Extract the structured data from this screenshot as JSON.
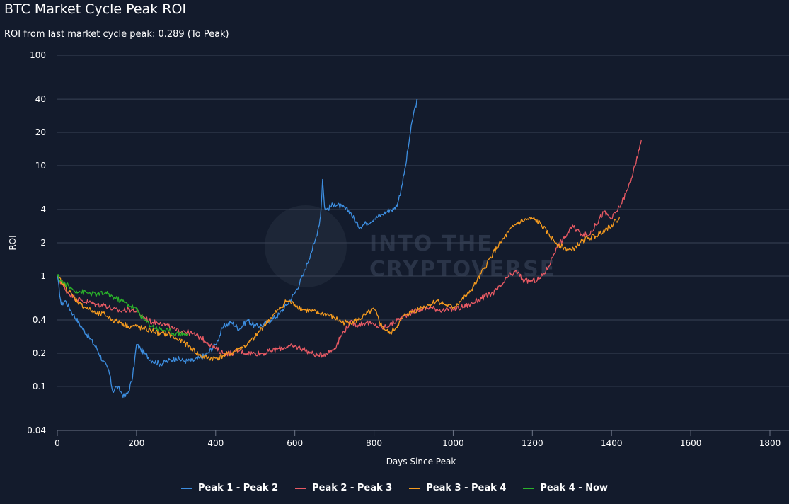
{
  "chart": {
    "title": "BTC Market Cycle Peak ROI",
    "subtitle": "ROI from last market cycle peak: 0.289 (To Peak)",
    "watermark": [
      "INTO THE",
      "CRYPTOVERSE"
    ],
    "background": "#131b2c",
    "grid_color": "#3a4356"
  },
  "chart_data": {
    "type": "line",
    "xlabel": "Days Since Peak",
    "ylabel": "ROI",
    "xlim": [
      0,
      1800
    ],
    "ylim": [
      0.04,
      100
    ],
    "y_scale": "log",
    "x_ticks": [
      0,
      200,
      400,
      600,
      800,
      1000,
      1200,
      1400,
      1600,
      1800
    ],
    "y_ticks": [
      0.04,
      0.1,
      0.2,
      0.4,
      1,
      2,
      4,
      10,
      20,
      40,
      100
    ],
    "y_tick_labels": [
      "0.04",
      "0.1",
      "0.2",
      "0.4",
      "1",
      "2",
      "4",
      "10",
      "20",
      "40",
      "100"
    ],
    "grid": true,
    "legend_position": "bottom-center",
    "series": [
      {
        "name": "Peak 1 - Peak 2",
        "color": "#3d8ee0",
        "x": [
          0,
          10,
          20,
          40,
          60,
          80,
          100,
          115,
          130,
          140,
          150,
          160,
          170,
          180,
          190,
          200,
          210,
          220,
          240,
          260,
          280,
          300,
          320,
          340,
          360,
          380,
          400,
          420,
          440,
          460,
          480,
          500,
          520,
          540,
          560,
          580,
          600,
          620,
          640,
          650,
          660,
          665,
          670,
          675,
          680,
          700,
          720,
          740,
          760,
          780,
          800,
          820,
          840,
          850,
          860,
          870,
          880,
          890,
          900,
          910
        ],
        "y": [
          1.0,
          0.55,
          0.6,
          0.45,
          0.35,
          0.28,
          0.22,
          0.17,
          0.14,
          0.09,
          0.1,
          0.09,
          0.08,
          0.09,
          0.12,
          0.24,
          0.22,
          0.2,
          0.17,
          0.16,
          0.17,
          0.18,
          0.17,
          0.17,
          0.18,
          0.2,
          0.24,
          0.35,
          0.38,
          0.33,
          0.4,
          0.35,
          0.36,
          0.4,
          0.45,
          0.55,
          0.7,
          1.0,
          1.6,
          2.0,
          2.8,
          3.5,
          7.5,
          4.2,
          4.0,
          4.5,
          4.2,
          3.8,
          2.8,
          3.0,
          3.3,
          3.6,
          4.0,
          4.0,
          4.6,
          6.5,
          10.0,
          18.0,
          30.0,
          40.0
        ]
      },
      {
        "name": "Peak 2 - Peak 3",
        "color": "#e85a64",
        "x": [
          0,
          20,
          40,
          60,
          80,
          100,
          120,
          140,
          160,
          180,
          200,
          220,
          240,
          260,
          280,
          300,
          320,
          340,
          360,
          380,
          400,
          420,
          440,
          460,
          480,
          500,
          520,
          540,
          560,
          580,
          600,
          620,
          640,
          660,
          680,
          700,
          720,
          740,
          760,
          780,
          800,
          820,
          840,
          860,
          880,
          900,
          920,
          940,
          960,
          980,
          1000,
          1020,
          1040,
          1060,
          1080,
          1100,
          1120,
          1140,
          1160,
          1180,
          1200,
          1220,
          1240,
          1260,
          1280,
          1300,
          1320,
          1340,
          1360,
          1380,
          1400,
          1420,
          1440,
          1460,
          1470,
          1475
        ],
        "y": [
          1.0,
          0.75,
          0.65,
          0.6,
          0.58,
          0.55,
          0.55,
          0.5,
          0.48,
          0.5,
          0.48,
          0.42,
          0.38,
          0.38,
          0.35,
          0.32,
          0.32,
          0.3,
          0.28,
          0.25,
          0.22,
          0.2,
          0.2,
          0.21,
          0.2,
          0.2,
          0.2,
          0.21,
          0.22,
          0.23,
          0.23,
          0.22,
          0.2,
          0.19,
          0.2,
          0.22,
          0.3,
          0.38,
          0.36,
          0.38,
          0.36,
          0.34,
          0.36,
          0.4,
          0.44,
          0.48,
          0.5,
          0.52,
          0.5,
          0.49,
          0.5,
          0.52,
          0.55,
          0.6,
          0.65,
          0.7,
          0.8,
          1.0,
          1.1,
          0.9,
          0.9,
          0.95,
          1.2,
          1.8,
          2.2,
          2.8,
          2.5,
          2.3,
          2.9,
          3.8,
          3.3,
          4.2,
          6.0,
          10.0,
          14.0,
          17.0
        ]
      },
      {
        "name": "Peak 3 - Peak 4",
        "color": "#f59b1f",
        "x": [
          0,
          20,
          40,
          60,
          80,
          100,
          120,
          140,
          160,
          180,
          200,
          220,
          240,
          260,
          280,
          300,
          320,
          340,
          360,
          380,
          400,
          420,
          440,
          460,
          480,
          500,
          520,
          540,
          560,
          580,
          600,
          620,
          640,
          660,
          680,
          700,
          720,
          740,
          760,
          780,
          800,
          820,
          840,
          860,
          880,
          900,
          920,
          940,
          960,
          980,
          1000,
          1020,
          1040,
          1060,
          1080,
          1100,
          1120,
          1140,
          1160,
          1180,
          1200,
          1220,
          1240,
          1260,
          1280,
          1300,
          1320,
          1340,
          1360,
          1380,
          1400,
          1420
        ],
        "y": [
          1.0,
          0.8,
          0.65,
          0.55,
          0.5,
          0.45,
          0.45,
          0.4,
          0.38,
          0.35,
          0.35,
          0.33,
          0.32,
          0.3,
          0.3,
          0.27,
          0.25,
          0.22,
          0.19,
          0.18,
          0.18,
          0.19,
          0.2,
          0.22,
          0.24,
          0.28,
          0.35,
          0.42,
          0.5,
          0.6,
          0.55,
          0.5,
          0.48,
          0.46,
          0.45,
          0.42,
          0.38,
          0.38,
          0.4,
          0.45,
          0.5,
          0.35,
          0.3,
          0.36,
          0.45,
          0.48,
          0.52,
          0.55,
          0.6,
          0.55,
          0.52,
          0.6,
          0.7,
          0.9,
          1.2,
          1.6,
          2.0,
          2.5,
          3.0,
          3.2,
          3.3,
          3.0,
          2.4,
          2.0,
          1.8,
          1.7,
          2.0,
          2.2,
          2.3,
          2.6,
          2.9,
          3.4
        ]
      },
      {
        "name": "Peak 4 - Now",
        "color": "#2ab22a",
        "x": [
          0,
          10,
          20,
          30,
          40,
          60,
          80,
          100,
          120,
          140,
          160,
          180,
          200,
          220,
          240,
          260,
          280,
          300,
          320,
          330
        ],
        "y": [
          1.0,
          0.9,
          0.85,
          0.8,
          0.75,
          0.72,
          0.7,
          0.68,
          0.7,
          0.65,
          0.6,
          0.55,
          0.5,
          0.4,
          0.35,
          0.33,
          0.32,
          0.3,
          0.3,
          0.29
        ]
      }
    ]
  }
}
